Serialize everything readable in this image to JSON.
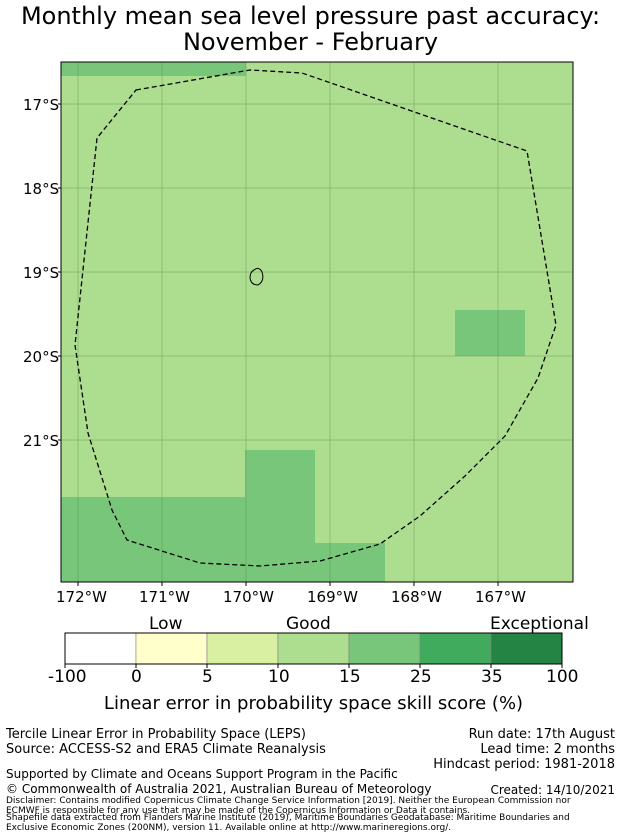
{
  "title_line1": "Monthly mean sea level pressure past accuracy:",
  "title_line2": "November - February",
  "map": {
    "lat_labels": [
      "17°S",
      "18°S",
      "19°S",
      "20°S",
      "21°S"
    ],
    "lon_labels": [
      "172°W",
      "171°W",
      "170°W",
      "169°W",
      "168°W",
      "167°W"
    ]
  },
  "colorbar": {
    "category_labels": [
      "Low",
      "Good",
      "Exceptional"
    ],
    "tick_labels": [
      "-100",
      "0",
      "5",
      "10",
      "15",
      "25",
      "35",
      "100"
    ],
    "colors": [
      "#ffffff",
      "#ffffcc",
      "#d9f0a3",
      "#addd8e",
      "#78c679",
      "#41ab5d",
      "#238443"
    ],
    "axis_label": "Linear error in probability space skill score (%)"
  },
  "info": {
    "left_line1": "Tercile Linear Error in Probability Space (LEPS)",
    "left_line2": "Source: ACCESS-S2 and ERA5 Climate Reanalysis",
    "run_date": "Run date: 17th August",
    "lead_time": "Lead time: 2 months",
    "hindcast": "Hindcast period: 1981-2018",
    "support": "Supported by Climate and Oceans Support Program in the Pacific",
    "copyright": "© Commonwealth of Australia 2021, Australian Bureau of Meteorology",
    "created": "Created: 14/10/2021",
    "disclaimer1": "Disclaimer: Contains modified Copernicus Climate Change Service Information [2019]. Neither the European Commission nor",
    "disclaimer2": "ECMWF is responsible for any use that may be made of the Copernicus Information or Data it contains.",
    "disclaimer3": "Shapefile data extracted from Flanders Marine Institute (2019), Maritime Boundaries Geodatabase: Maritime Boundaries and",
    "disclaimer4": "Exclusive Economic Zones (200NM), version 11. Available online at http://www.marineregions.org/."
  }
}
